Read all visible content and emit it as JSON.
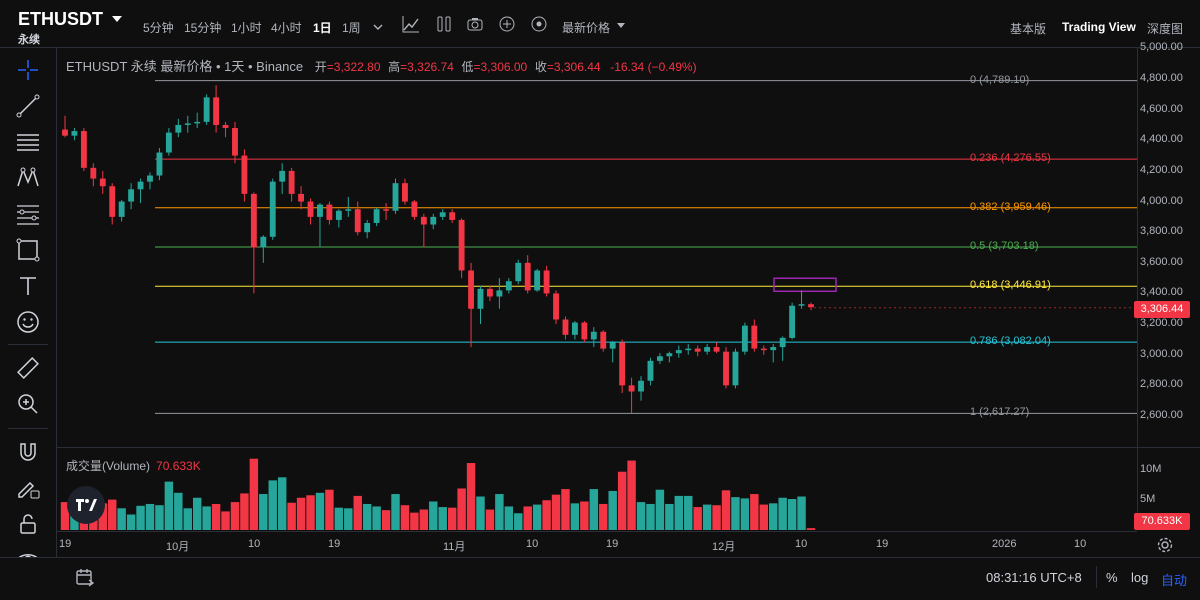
{
  "header": {
    "symbol": "ETHUSDT",
    "contract": "永续",
    "timeframes": [
      "5分钟",
      "15分钟",
      "1小时",
      "4小时",
      "1日",
      "1周"
    ],
    "active_timeframe": "1日",
    "price_type": "最新价格",
    "views": [
      "基本版",
      "Trading View",
      "深度图"
    ],
    "active_view": "Trading View"
  },
  "legend": {
    "title": "ETHUSDT 永续 最新价格 • 1天 • Binance",
    "open_label": "开",
    "open": "=3,322.80",
    "high_label": "高",
    "high": "=3,326.74",
    "low_label": "低",
    "low": "=3,306.00",
    "close_label": "收",
    "close": "=3,306.44",
    "change": "-16.34 (−0.49%)"
  },
  "price_axis": [
    "5,000.00",
    "4,800.00",
    "4,600.00",
    "4,400.00",
    "4,200.00",
    "4,000.00",
    "3,800.00",
    "3,600.00",
    "3,400.00",
    "3,200.00",
    "3,000.00",
    "2,800.00",
    "2,600.00"
  ],
  "current_price": "3,306.44",
  "fib_levels": [
    {
      "level": "0 (4,789.10)",
      "price": 4789.1,
      "color": "#9598a1"
    },
    {
      "level": "0.236 (4,276.55)",
      "price": 4276.55,
      "color": "#f23645"
    },
    {
      "level": "0.382 (3,959.46)",
      "price": 3959.46,
      "color": "#ff9800"
    },
    {
      "level": "0.5 (3,703.18)",
      "price": 3703.18,
      "color": "#4caf50"
    },
    {
      "level": "0.618 (3,446.91)",
      "price": 3446.91,
      "color": "#ffeb3b"
    },
    {
      "level": "0.786 (3,082.04)",
      "price": 3082.04,
      "color": "#26c6da"
    },
    {
      "level": "1 (2,617.27)",
      "price": 2617.27,
      "color": "#9598a1"
    }
  ],
  "volume": {
    "label": "成交量(Volume)",
    "value": "70.633K",
    "axis": [
      "10M",
      "5M"
    ]
  },
  "time_axis": [
    "19",
    "10月",
    "10",
    "19",
    "11月",
    "10",
    "19",
    "12月",
    "10",
    "19",
    "2026",
    "10"
  ],
  "footer": {
    "clock": "08:31:16 UTC+8",
    "percent": "%",
    "log": "log",
    "auto": "自动"
  },
  "colors": {
    "up": "#26a69a",
    "down": "#f23645",
    "highlight_box": "#9c27b0"
  },
  "candles": [
    [
      4470,
      4560,
      4420,
      4430
    ],
    [
      4430,
      4480,
      4400,
      4460
    ],
    [
      4460,
      4480,
      4200,
      4220
    ],
    [
      4220,
      4250,
      4100,
      4150
    ],
    [
      4150,
      4200,
      4050,
      4100
    ],
    [
      4100,
      4120,
      3850,
      3900
    ],
    [
      3900,
      4010,
      3870,
      4000
    ],
    [
      4000,
      4120,
      3950,
      4080
    ],
    [
      4080,
      4150,
      3990,
      4130
    ],
    [
      4130,
      4190,
      4080,
      4170
    ],
    [
      4170,
      4350,
      4140,
      4320
    ],
    [
      4320,
      4480,
      4300,
      4450
    ],
    [
      4450,
      4540,
      4420,
      4500
    ],
    [
      4500,
      4560,
      4450,
      4510
    ],
    [
      4510,
      4580,
      4480,
      4520
    ],
    [
      4520,
      4700,
      4500,
      4680
    ],
    [
      4680,
      4760,
      4450,
      4500
    ],
    [
      4500,
      4520,
      4420,
      4480
    ],
    [
      4480,
      4520,
      4250,
      4300
    ],
    [
      4300,
      4340,
      4000,
      4050
    ],
    [
      4050,
      4060,
      3400,
      3700
    ],
    [
      3700,
      3780,
      3600,
      3770
    ],
    [
      3770,
      4150,
      3750,
      4130
    ],
    [
      4130,
      4250,
      4050,
      4200
    ],
    [
      4200,
      4220,
      4000,
      4050
    ],
    [
      4050,
      4100,
      3950,
      4000
    ],
    [
      4000,
      4020,
      3850,
      3900
    ],
    [
      3900,
      3990,
      3700,
      3980
    ],
    [
      3980,
      4000,
      3850,
      3880
    ],
    [
      3880,
      3950,
      3830,
      3940
    ],
    [
      3940,
      4030,
      3900,
      3950
    ],
    [
      3950,
      4000,
      3780,
      3800
    ],
    [
      3800,
      3880,
      3760,
      3860
    ],
    [
      3860,
      3960,
      3840,
      3950
    ],
    [
      3950,
      3990,
      3880,
      3940
    ],
    [
      3940,
      4150,
      3920,
      4120
    ],
    [
      4120,
      4150,
      3980,
      4000
    ],
    [
      4000,
      4010,
      3880,
      3900
    ],
    [
      3900,
      3920,
      3700,
      3850
    ],
    [
      3850,
      3920,
      3820,
      3900
    ],
    [
      3900,
      3950,
      3880,
      3930
    ],
    [
      3930,
      3950,
      3860,
      3880
    ],
    [
      3880,
      3890,
      3500,
      3550
    ],
    [
      3550,
      3600,
      3050,
      3300
    ],
    [
      3300,
      3450,
      3200,
      3430
    ],
    [
      3430,
      3450,
      3350,
      3380
    ],
    [
      3380,
      3500,
      3300,
      3420
    ],
    [
      3420,
      3500,
      3400,
      3480
    ],
    [
      3480,
      3620,
      3460,
      3600
    ],
    [
      3600,
      3650,
      3400,
      3420
    ],
    [
      3420,
      3560,
      3410,
      3550
    ],
    [
      3550,
      3580,
      3380,
      3400
    ],
    [
      3400,
      3420,
      3200,
      3230
    ],
    [
      3230,
      3250,
      3100,
      3130
    ],
    [
      3130,
      3220,
      3100,
      3210
    ],
    [
      3210,
      3220,
      3080,
      3100
    ],
    [
      3100,
      3180,
      3050,
      3150
    ],
    [
      3150,
      3160,
      3020,
      3040
    ],
    [
      3040,
      3090,
      2950,
      3080
    ],
    [
      3080,
      3100,
      2750,
      2800
    ],
    [
      2800,
      2850,
      2620,
      2760
    ],
    [
      2760,
      2860,
      2700,
      2830
    ],
    [
      2830,
      2980,
      2800,
      2960
    ],
    [
      2960,
      3010,
      2940,
      2990
    ],
    [
      2990,
      3020,
      2950,
      3010
    ],
    [
      3010,
      3060,
      2980,
      3030
    ],
    [
      3030,
      3070,
      3000,
      3040
    ],
    [
      3040,
      3060,
      2990,
      3020
    ],
    [
      3020,
      3070,
      3000,
      3050
    ],
    [
      3050,
      3080,
      3010,
      3020
    ],
    [
      3020,
      3050,
      2780,
      2800
    ],
    [
      2800,
      3040,
      2780,
      3020
    ],
    [
      3020,
      3210,
      3000,
      3190
    ],
    [
      3190,
      3230,
      3020,
      3040
    ],
    [
      3040,
      3060,
      3000,
      3030
    ],
    [
      3030,
      3070,
      2950,
      3050
    ],
    [
      3050,
      3120,
      2960,
      3110
    ],
    [
      3110,
      3340,
      3100,
      3320
    ],
    [
      3320,
      3420,
      3300,
      3330
    ],
    [
      3330,
      3340,
      3290,
      3310
    ]
  ],
  "volumes": [
    4.5,
    3.1,
    4.5,
    4.2,
    4.3,
    4.9,
    3.5,
    2.5,
    3.9,
    4.2,
    4.0,
    7.8,
    6.0,
    3.5,
    5.2,
    3.8,
    4.2,
    3.0,
    4.5,
    5.9,
    11.5,
    5.8,
    8.0,
    8.5,
    4.4,
    5.2,
    5.6,
    6.0,
    6.5,
    3.6,
    3.5,
    5.5,
    4.2,
    3.8,
    3.2,
    5.8,
    4.0,
    2.8,
    3.3,
    4.6,
    3.7,
    3.6,
    6.7,
    10.8,
    5.4,
    3.3,
    5.8,
    3.8,
    2.7,
    3.8,
    4.1,
    4.8,
    5.7,
    6.6,
    4.3,
    4.6,
    6.6,
    4.2,
    6.3,
    9.4,
    11.2,
    4.5,
    4.2,
    6.5,
    4.2,
    5.5,
    5.5,
    3.7,
    4.1,
    4.0,
    6.4,
    5.3,
    5.1,
    5.8,
    4.1,
    4.3,
    5.2,
    5.0,
    5.4,
    0.3
  ]
}
